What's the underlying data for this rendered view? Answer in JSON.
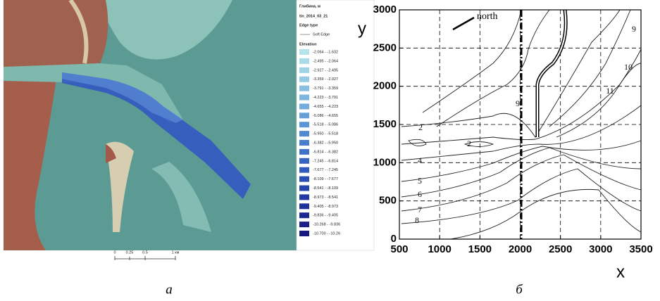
{
  "panel_a": {
    "legend": {
      "title": "Глибина, м",
      "layer": "tin_2014_03_21",
      "edge_heading": "Edge type",
      "edge_item": "Soft Edge",
      "elevation_heading": "Elevation",
      "items": [
        {
          "label": "-2.064 - -1.632",
          "color": "#b4e4ea"
        },
        {
          "label": "-2.495 - -2.064",
          "color": "#a9dce8"
        },
        {
          "label": "-2.927 - -2.495",
          "color": "#9ed3e6"
        },
        {
          "label": "-3.359 - -2.927",
          "color": "#93cae4"
        },
        {
          "label": "-3.791 - -3.359",
          "color": "#88c0e2"
        },
        {
          "label": "-4.223 - -3.791",
          "color": "#7db6df"
        },
        {
          "label": "-4.655 - -4.223",
          "color": "#72abdc"
        },
        {
          "label": "-5.086 - -4.655",
          "color": "#67a0d9"
        },
        {
          "label": "-5.518 - -5.086",
          "color": "#5c95d6"
        },
        {
          "label": "-5.950 - -5.518",
          "color": "#528ad2"
        },
        {
          "label": "-6.382 - -5.950",
          "color": "#487ecd"
        },
        {
          "label": "-6.814 - -6.382",
          "color": "#3f72c8"
        },
        {
          "label": "-7.245 - -6.814",
          "color": "#3766c2"
        },
        {
          "label": "-7.677 - -7.245",
          "color": "#305abb"
        },
        {
          "label": "-8.109 - -7.677",
          "color": "#2a4fb4"
        },
        {
          "label": "-8.541 - -8.109",
          "color": "#2544ac"
        },
        {
          "label": "-8.973 - -8.541",
          "color": "#213aa4"
        },
        {
          "label": "-9.405 - -8.973",
          "color": "#1e319b"
        },
        {
          "label": "-9.836 - -9.405",
          "color": "#1b2892"
        },
        {
          "label": "-10.268 - -9.836",
          "color": "#192089"
        },
        {
          "label": "-10.700 - -10.26",
          "color": "#171980"
        }
      ]
    },
    "scale_labels": [
      "0",
      "0.25",
      "0.5",
      "1 км"
    ],
    "caption": "а"
  },
  "chart_data": {
    "type": "contour",
    "xlabel": "x",
    "ylabel": "y",
    "xlim": [
      500,
      3500
    ],
    "ylim": [
      0,
      3000
    ],
    "xticks": [
      500,
      1000,
      1500,
      2000,
      2500,
      3000,
      3500
    ],
    "yticks": [
      0,
      500,
      1000,
      1500,
      2000,
      2500,
      3000
    ],
    "grid": true,
    "annotation": "north",
    "contour_labels": [
      "9",
      "10",
      "11",
      "9",
      "2",
      "2",
      "4",
      "5",
      "6",
      "7",
      "8"
    ],
    "caption": "б"
  }
}
